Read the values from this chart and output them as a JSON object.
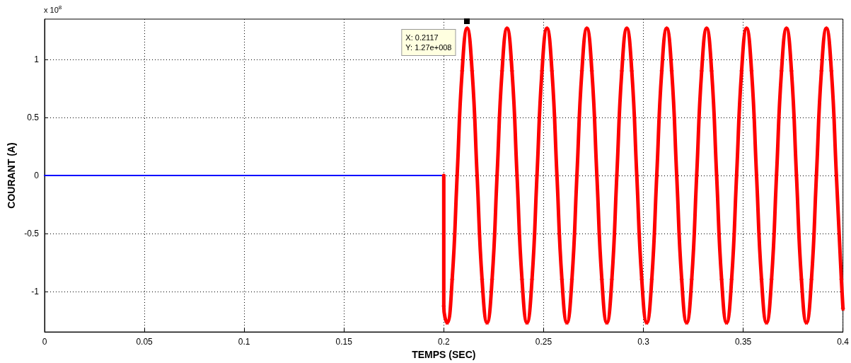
{
  "chart_data": {
    "type": "line",
    "xlabel": "TEMPS (SEC)",
    "ylabel": "COURANT (A)",
    "annotations": [
      "x 10$^{8}$",
      {
        "text": "X: 0.2117\nY: 1.27e+008",
        "x": 0.2117,
        "y": 1.27
      }
    ],
    "xlim": [
      0,
      0.4
    ],
    "xticks": [
      0,
      0.05,
      0.1,
      0.15,
      0.2,
      0.25,
      0.3,
      0.35,
      0.4
    ],
    "ylim": [
      -1.35,
      1.35
    ],
    "yticks": [
      -1,
      -0.5,
      0,
      0.5,
      1
    ],
    "grid": true,
    "line_style": "solid",
    "series": [
      {
        "color": "#0000ff",
        "marker": "none",
        "x": [
          0,
          0.2
        ],
        "values": [
          0,
          0
        ]
      },
      {
        "color": "#ff0000",
        "marker": "star",
        "x": [
          0.2,
          0.2,
          0.2017,
          0.2042,
          0.2067,
          0.2092,
          0.2117,
          0.2142,
          0.2167,
          0.2192,
          0.2217,
          0.2242,
          0.2267,
          0.2292,
          0.2317,
          0.2342,
          0.2367,
          0.2392,
          0.2417,
          0.2442,
          0.2467,
          0.2492,
          0.2517,
          0.2542,
          0.2567,
          0.2592,
          0.2617,
          0.2642,
          0.2667,
          0.2692,
          0.2717,
          0.2742,
          0.2767,
          0.2792,
          0.2817,
          0.2842,
          0.2867,
          0.2892,
          0.2917,
          0.2942,
          0.2967,
          0.2992,
          0.3017,
          0.3042,
          0.3067,
          0.3092,
          0.3117,
          0.3142,
          0.3167,
          0.3192,
          0.3217,
          0.3242,
          0.3267,
          0.3292,
          0.3317,
          0.3342,
          0.3367,
          0.3392,
          0.3417,
          0.3442,
          0.3467,
          0.3492,
          0.3517,
          0.3542,
          0.3567,
          0.3592,
          0.3617,
          0.3642,
          0.3667,
          0.3692,
          0.3717,
          0.3742,
          0.3767,
          0.3792,
          0.3817,
          0.3842,
          0.3867,
          0.3892,
          0.3917,
          0.3942,
          0.3967,
          0.3992,
          0.4
        ],
        "values": [
          0,
          -1.13,
          -1.27,
          -0.9,
          0,
          0.9,
          1.27,
          0.9,
          0,
          -0.9,
          -1.27,
          -0.9,
          0,
          0.9,
          1.27,
          0.9,
          0,
          -0.9,
          -1.27,
          -0.9,
          0,
          0.9,
          1.27,
          0.9,
          0,
          -0.9,
          -1.27,
          -0.9,
          0,
          0.9,
          1.27,
          0.9,
          0,
          -0.9,
          -1.27,
          -0.9,
          0,
          0.9,
          1.27,
          0.9,
          0,
          -0.9,
          -1.27,
          -0.9,
          0,
          0.9,
          1.27,
          0.9,
          0,
          -0.9,
          -1.27,
          -0.9,
          0,
          0.9,
          1.27,
          0.9,
          0,
          -0.9,
          -1.27,
          -0.9,
          0,
          0.9,
          1.27,
          0.9,
          0,
          -0.9,
          -1.27,
          -0.9,
          0,
          0.9,
          1.27,
          0.9,
          0,
          -0.9,
          -1.27,
          -0.9,
          0,
          0.9,
          1.27,
          0.9,
          0,
          -0.9,
          -1.15
        ]
      }
    ]
  }
}
